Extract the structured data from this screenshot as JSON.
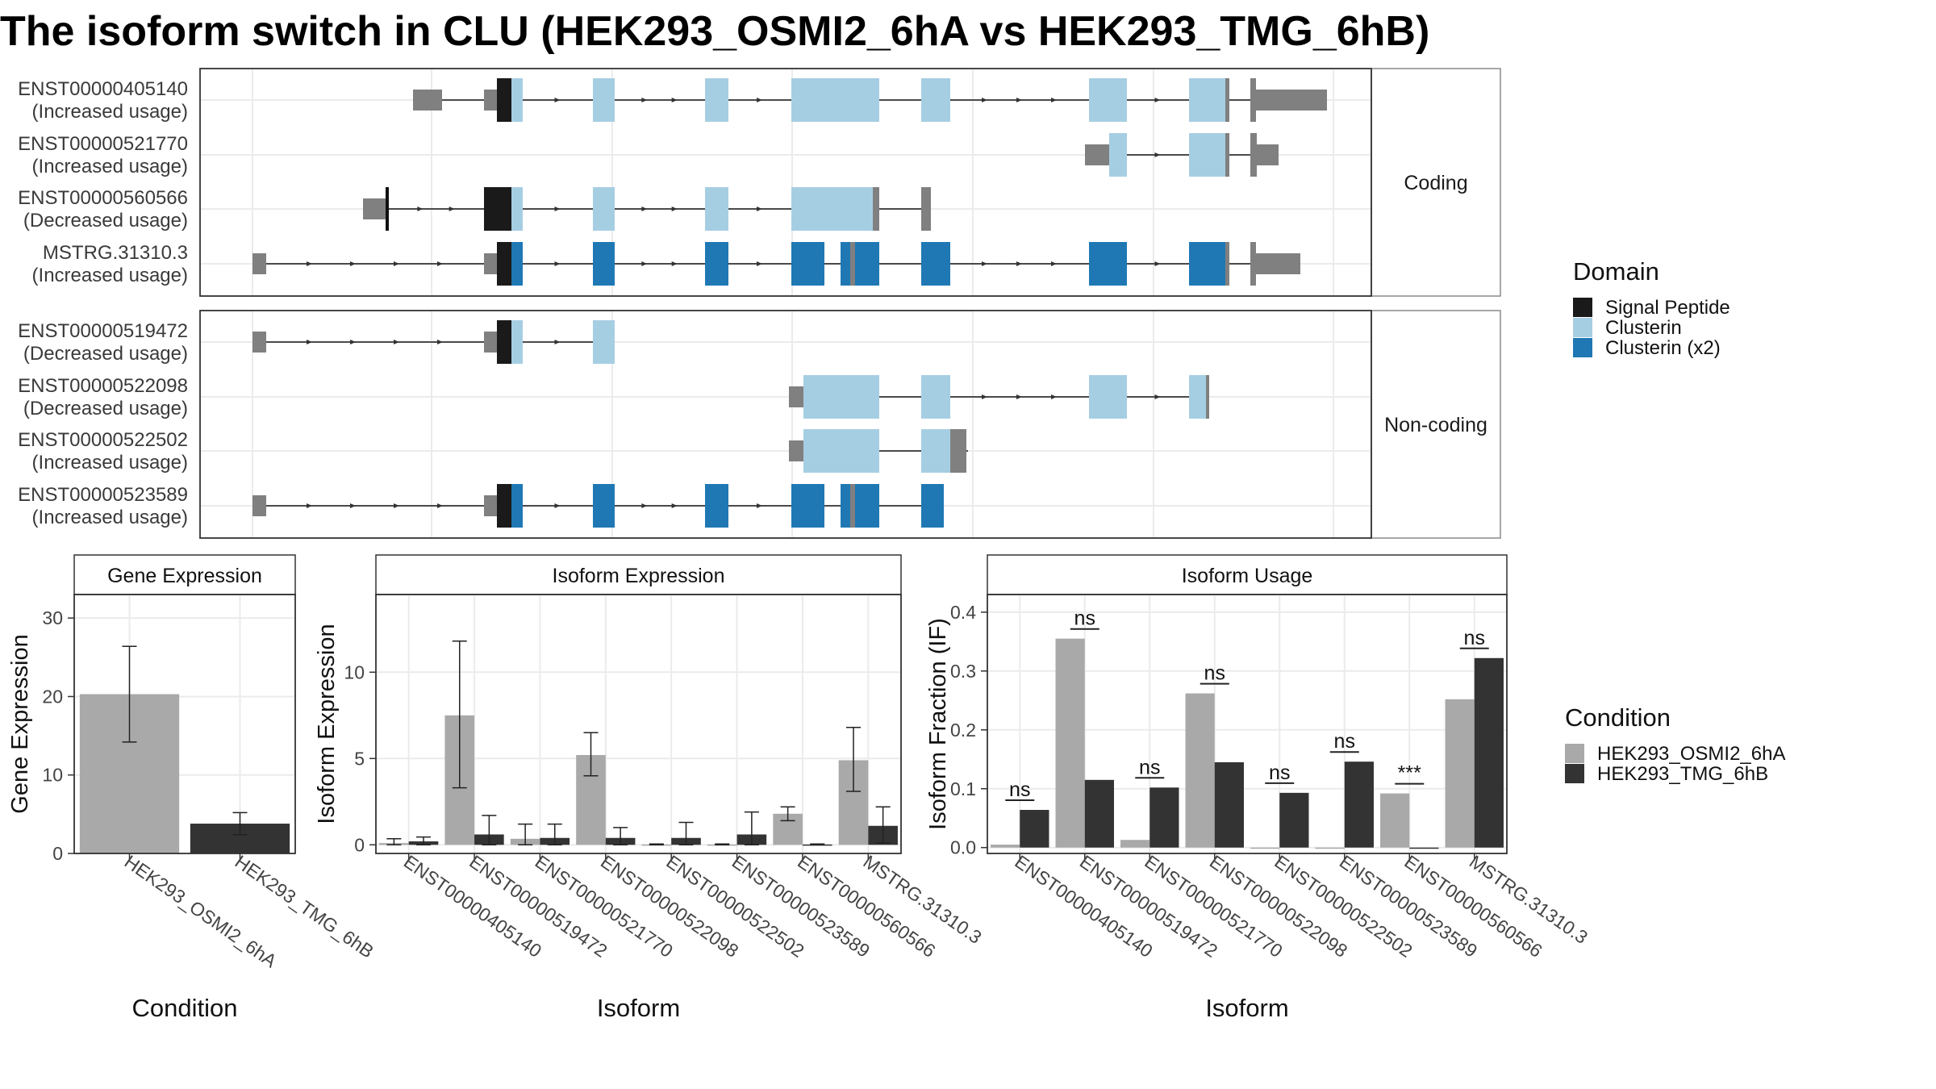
{
  "title": "The isoform switch in CLU (HEK293_OSMI2_6hA vs HEK293_TMG_6hB)",
  "colors": {
    "signal_peptide": "#1a1a1a",
    "clusterin": "#a6cee3",
    "clusterin_x2": "#1f78b4",
    "utr": "#808080",
    "cond_a": "#a9a9a9",
    "cond_b": "#333333"
  },
  "structure": {
    "facets": [
      "Coding",
      "Non-coding"
    ],
    "transcripts": [
      {
        "id": "ENST00000405140",
        "usage": "(Increased usage)",
        "group": "Coding"
      },
      {
        "id": "ENST00000521770",
        "usage": "(Increased usage)",
        "group": "Coding"
      },
      {
        "id": "ENST00000560566",
        "usage": "(Decreased usage)",
        "group": "Coding"
      },
      {
        "id": "MSTRG.31310.3",
        "usage": "(Increased usage)",
        "group": "Coding"
      },
      {
        "id": "ENST00000519472",
        "usage": "(Decreased usage)",
        "group": "Non-coding"
      },
      {
        "id": "ENST00000522098",
        "usage": "(Decreased usage)",
        "group": "Non-coding"
      },
      {
        "id": "ENST00000522502",
        "usage": "(Increased usage)",
        "group": "Non-coding"
      },
      {
        "id": "ENST00000523589",
        "usage": "(Increased usage)",
        "group": "Non-coding"
      }
    ]
  },
  "domain_legend": {
    "title": "Domain",
    "items": [
      {
        "label": "Signal Peptide",
        "color": "#1a1a1a"
      },
      {
        "label": "Clusterin",
        "color": "#a6cee3"
      },
      {
        "label": "Clusterin (x2)",
        "color": "#1f78b4"
      }
    ]
  },
  "condition_legend": {
    "title": "Condition",
    "items": [
      {
        "label": "HEK293_OSMI2_6hA",
        "color": "#a9a9a9"
      },
      {
        "label": "HEK293_TMG_6hB",
        "color": "#333333"
      }
    ]
  },
  "chart_data": [
    {
      "type": "bar",
      "title": "Gene Expression",
      "xlabel": "Condition",
      "ylabel": "Gene Expression",
      "categories": [
        "HEK293_OSMI2_6hA",
        "HEK293_TMG_6hB"
      ],
      "values": [
        20.3,
        3.8
      ],
      "errors": [
        [
          14.2,
          26.4
        ],
        [
          2.4,
          5.2
        ]
      ],
      "ylim": [
        0,
        33
      ],
      "yticks": [
        0,
        10,
        20,
        30
      ]
    },
    {
      "type": "bar",
      "title": "Isoform Expression",
      "xlabel": "Isoform",
      "ylabel": "Isoform Expression",
      "categories": [
        "ENST00000405140",
        "ENST00000519472",
        "ENST00000521770",
        "ENST00000522098",
        "ENST00000522502",
        "ENST00000523589",
        "ENST00000560566",
        "MSTRG.31310.3"
      ],
      "series": [
        {
          "name": "HEK293_OSMI2_6hA",
          "values": [
            0.1,
            7.5,
            0.35,
            5.2,
            0.02,
            0.02,
            1.8,
            4.9
          ],
          "errors": [
            [
              0,
              0.35
            ],
            [
              3.3,
              11.8
            ],
            [
              0,
              1.2
            ],
            [
              4.0,
              6.5
            ],
            [
              0,
              0.05
            ],
            [
              0,
              0.05
            ],
            [
              1.4,
              2.2
            ],
            [
              3.1,
              6.8
            ]
          ]
        },
        {
          "name": "HEK293_TMG_6hB",
          "values": [
            0.2,
            0.6,
            0.4,
            0.4,
            0.4,
            0.6,
            0.02,
            1.1
          ],
          "errors": [
            [
              0,
              0.45
            ],
            [
              0,
              1.7
            ],
            [
              0,
              1.2
            ],
            [
              0,
              1.0
            ],
            [
              0,
              1.3
            ],
            [
              0,
              1.9
            ],
            [
              0,
              0.05
            ],
            [
              0.1,
              2.2
            ]
          ]
        }
      ],
      "ylim": [
        -0.5,
        14.5
      ],
      "yticks": [
        0,
        5,
        10
      ]
    },
    {
      "type": "bar",
      "title": "Isoform Usage",
      "xlabel": "Isoform",
      "ylabel": "Isoform Fraction (IF)",
      "categories": [
        "ENST00000405140",
        "ENST00000519472",
        "ENST00000521770",
        "ENST00000522098",
        "ENST00000522502",
        "ENST00000523589",
        "ENST00000560566",
        "MSTRG.31310.3"
      ],
      "series": [
        {
          "name": "HEK293_OSMI2_6hA",
          "values": [
            0.005,
            0.355,
            0.013,
            0.262,
            0.0,
            0.0,
            0.092,
            0.252
          ]
        },
        {
          "name": "HEK293_TMG_6hB",
          "values": [
            0.064,
            0.115,
            0.102,
            0.145,
            0.093,
            0.146,
            0.0,
            0.322
          ]
        }
      ],
      "significance": [
        "ns",
        "ns",
        "ns",
        "ns",
        "ns",
        "ns",
        "***",
        "ns"
      ],
      "ylim": [
        -0.01,
        0.43
      ],
      "yticks": [
        0.0,
        0.1,
        0.2,
        0.3,
        0.4
      ]
    }
  ]
}
